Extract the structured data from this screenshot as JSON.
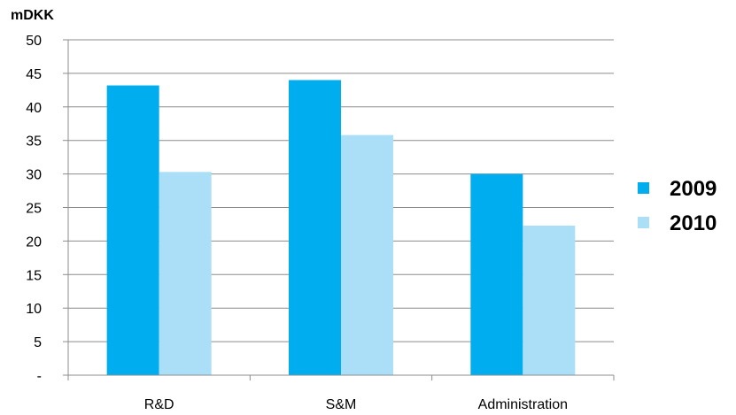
{
  "chart_data": {
    "type": "bar",
    "unit_label": "mDKK",
    "categories": [
      "R&D",
      "S&M",
      "Administration"
    ],
    "series": [
      {
        "name": "2009",
        "values": [
          43.2,
          44.0,
          30.0
        ],
        "color": "#00aeef"
      },
      {
        "name": "2010",
        "values": [
          30.3,
          35.8,
          22.3
        ],
        "color": "#abdff8"
      }
    ],
    "ylim": [
      0,
      50
    ],
    "yticks": [
      "-",
      "5",
      "10",
      "15",
      "20",
      "25",
      "30",
      "35",
      "40",
      "45",
      "50"
    ],
    "grid": true,
    "legend_position": "right"
  }
}
